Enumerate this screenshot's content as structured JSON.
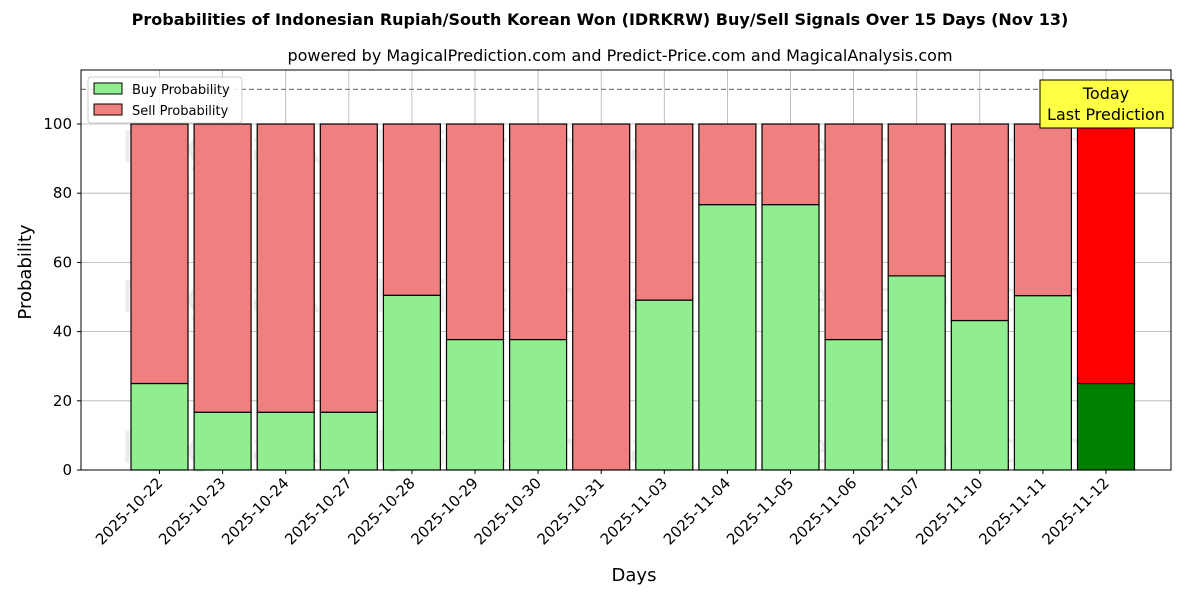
{
  "chart_data": {
    "type": "bar",
    "stacked": true,
    "title": "Probabilities of Indonesian Rupiah/South Korean Won (IDRKRW) Buy/Sell Signals Over 15 Days (Nov 13)",
    "subtitle": "powered by MagicalPrediction.com and Predict-Price.com and MagicalAnalysis.com",
    "xlabel": "Days",
    "ylabel": "Probability",
    "ylim": [
      0,
      115
    ],
    "yticks": [
      0,
      20,
      40,
      60,
      80,
      100
    ],
    "grid": true,
    "reference_line": 110,
    "legend_position": "upper left",
    "categories": [
      "2025-10-22",
      "2025-10-23",
      "2025-10-24",
      "2025-10-27",
      "2025-10-28",
      "2025-10-29",
      "2025-10-30",
      "2025-10-31",
      "2025-11-03",
      "2025-11-04",
      "2025-11-05",
      "2025-11-06",
      "2025-11-07",
      "2025-11-10",
      "2025-11-11",
      "2025-11-12"
    ],
    "series": [
      {
        "name": "Buy Probability",
        "color": "#90ee90",
        "values": [
          25,
          16.7,
          16.7,
          16.7,
          50.5,
          37.7,
          37.7,
          0,
          49.1,
          76.7,
          76.7,
          37.7,
          56.1,
          43.2,
          50.4,
          25
        ]
      },
      {
        "name": "Sell Probability",
        "color": "#f08080",
        "values": [
          75,
          83.3,
          83.3,
          83.3,
          49.5,
          62.3,
          62.3,
          100,
          50.9,
          23.3,
          23.3,
          62.3,
          43.9,
          56.8,
          49.6,
          75
        ]
      }
    ],
    "highlight": {
      "index": 15,
      "buy_color": "#008000",
      "sell_color": "#ff0000"
    },
    "annotation": {
      "line1": "Today",
      "line2": "Last Prediction",
      "bg": "#ffff44"
    },
    "watermarks": [
      "MagicalAnalysis.com",
      "MagicalPrediction.com"
    ]
  }
}
